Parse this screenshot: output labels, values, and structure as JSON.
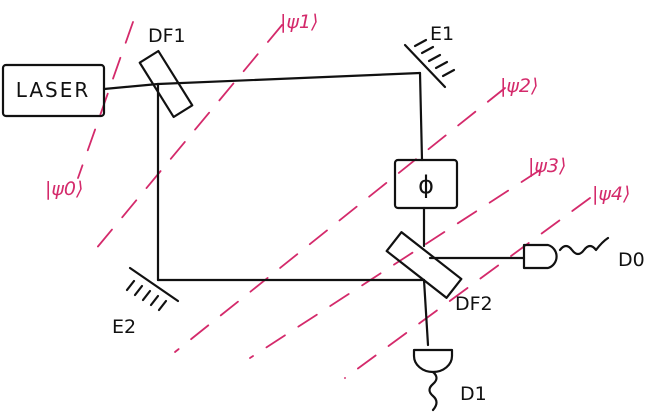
{
  "labels": {
    "laser": "LASER",
    "df1": "DF1",
    "df2": "DF2",
    "e1": "E1",
    "e2": "E2",
    "phi": "ϕ",
    "d0": "D0",
    "d1": "D1"
  },
  "states": {
    "psi0": "|ψ0⟩",
    "psi1": "|ψ1⟩",
    "psi2": "|ψ2⟩",
    "psi3": "|ψ3⟩",
    "psi4": "|ψ4⟩"
  },
  "colors": {
    "ink": "#111111",
    "state_lines": "#d42a6b"
  }
}
